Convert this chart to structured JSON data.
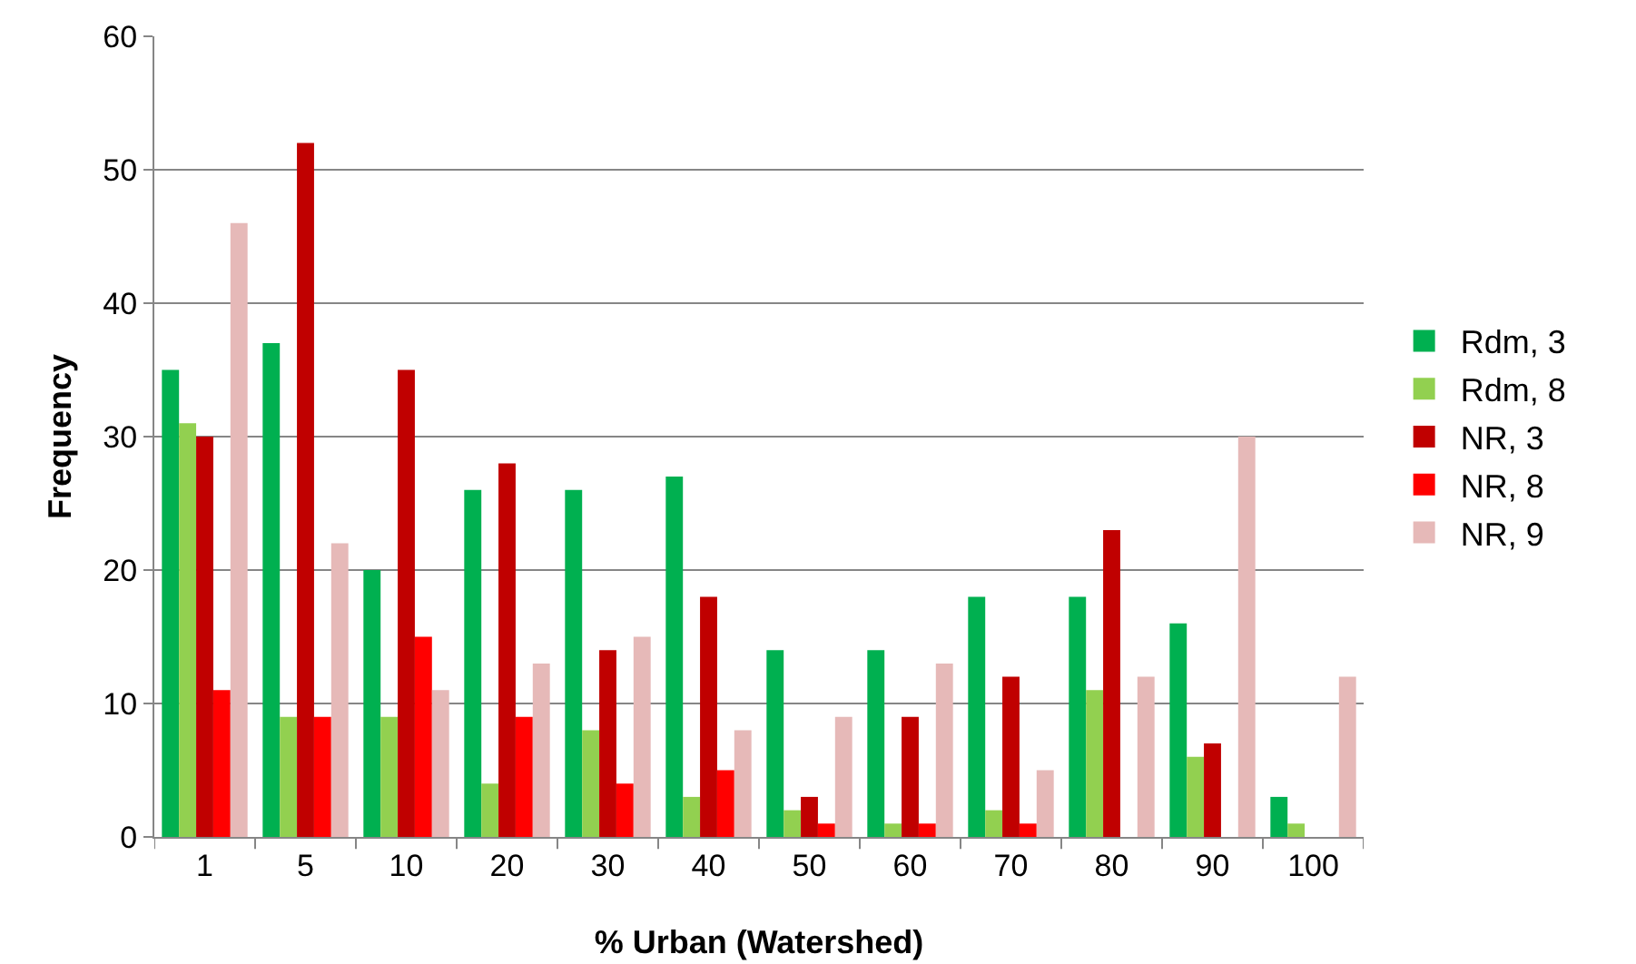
{
  "chart_data": {
    "type": "bar",
    "xlabel": "% Urban (Watershed)",
    "ylabel": "Frequency",
    "categories": [
      "1",
      "5",
      "10",
      "20",
      "30",
      "40",
      "50",
      "60",
      "70",
      "80",
      "90",
      "100"
    ],
    "series": [
      {
        "name": "Rdm, 3",
        "color": "#00b050",
        "values": [
          35,
          37,
          20,
          26,
          26,
          27,
          14,
          14,
          18,
          18,
          16,
          3
        ]
      },
      {
        "name": "Rdm, 8",
        "color": "#92d050",
        "values": [
          31,
          9,
          9,
          4,
          8,
          3,
          2,
          1,
          2,
          11,
          6,
          1
        ]
      },
      {
        "name": "NR, 3",
        "color": "#c00000",
        "values": [
          30,
          52,
          35,
          28,
          14,
          18,
          3,
          9,
          12,
          23,
          7,
          0
        ]
      },
      {
        "name": "NR, 8",
        "color": "#ff0000",
        "values": [
          11,
          9,
          15,
          9,
          4,
          5,
          1,
          1,
          1,
          0,
          0,
          0
        ]
      },
      {
        "name": "NR, 9",
        "color": "#e6b9b8",
        "values": [
          46,
          22,
          11,
          13,
          15,
          8,
          9,
          13,
          5,
          12,
          30,
          12
        ]
      }
    ],
    "ylim": [
      0,
      60
    ],
    "yticks": [
      0,
      10,
      20,
      30,
      40,
      50,
      60
    ],
    "grid": "y",
    "legend": "right"
  }
}
